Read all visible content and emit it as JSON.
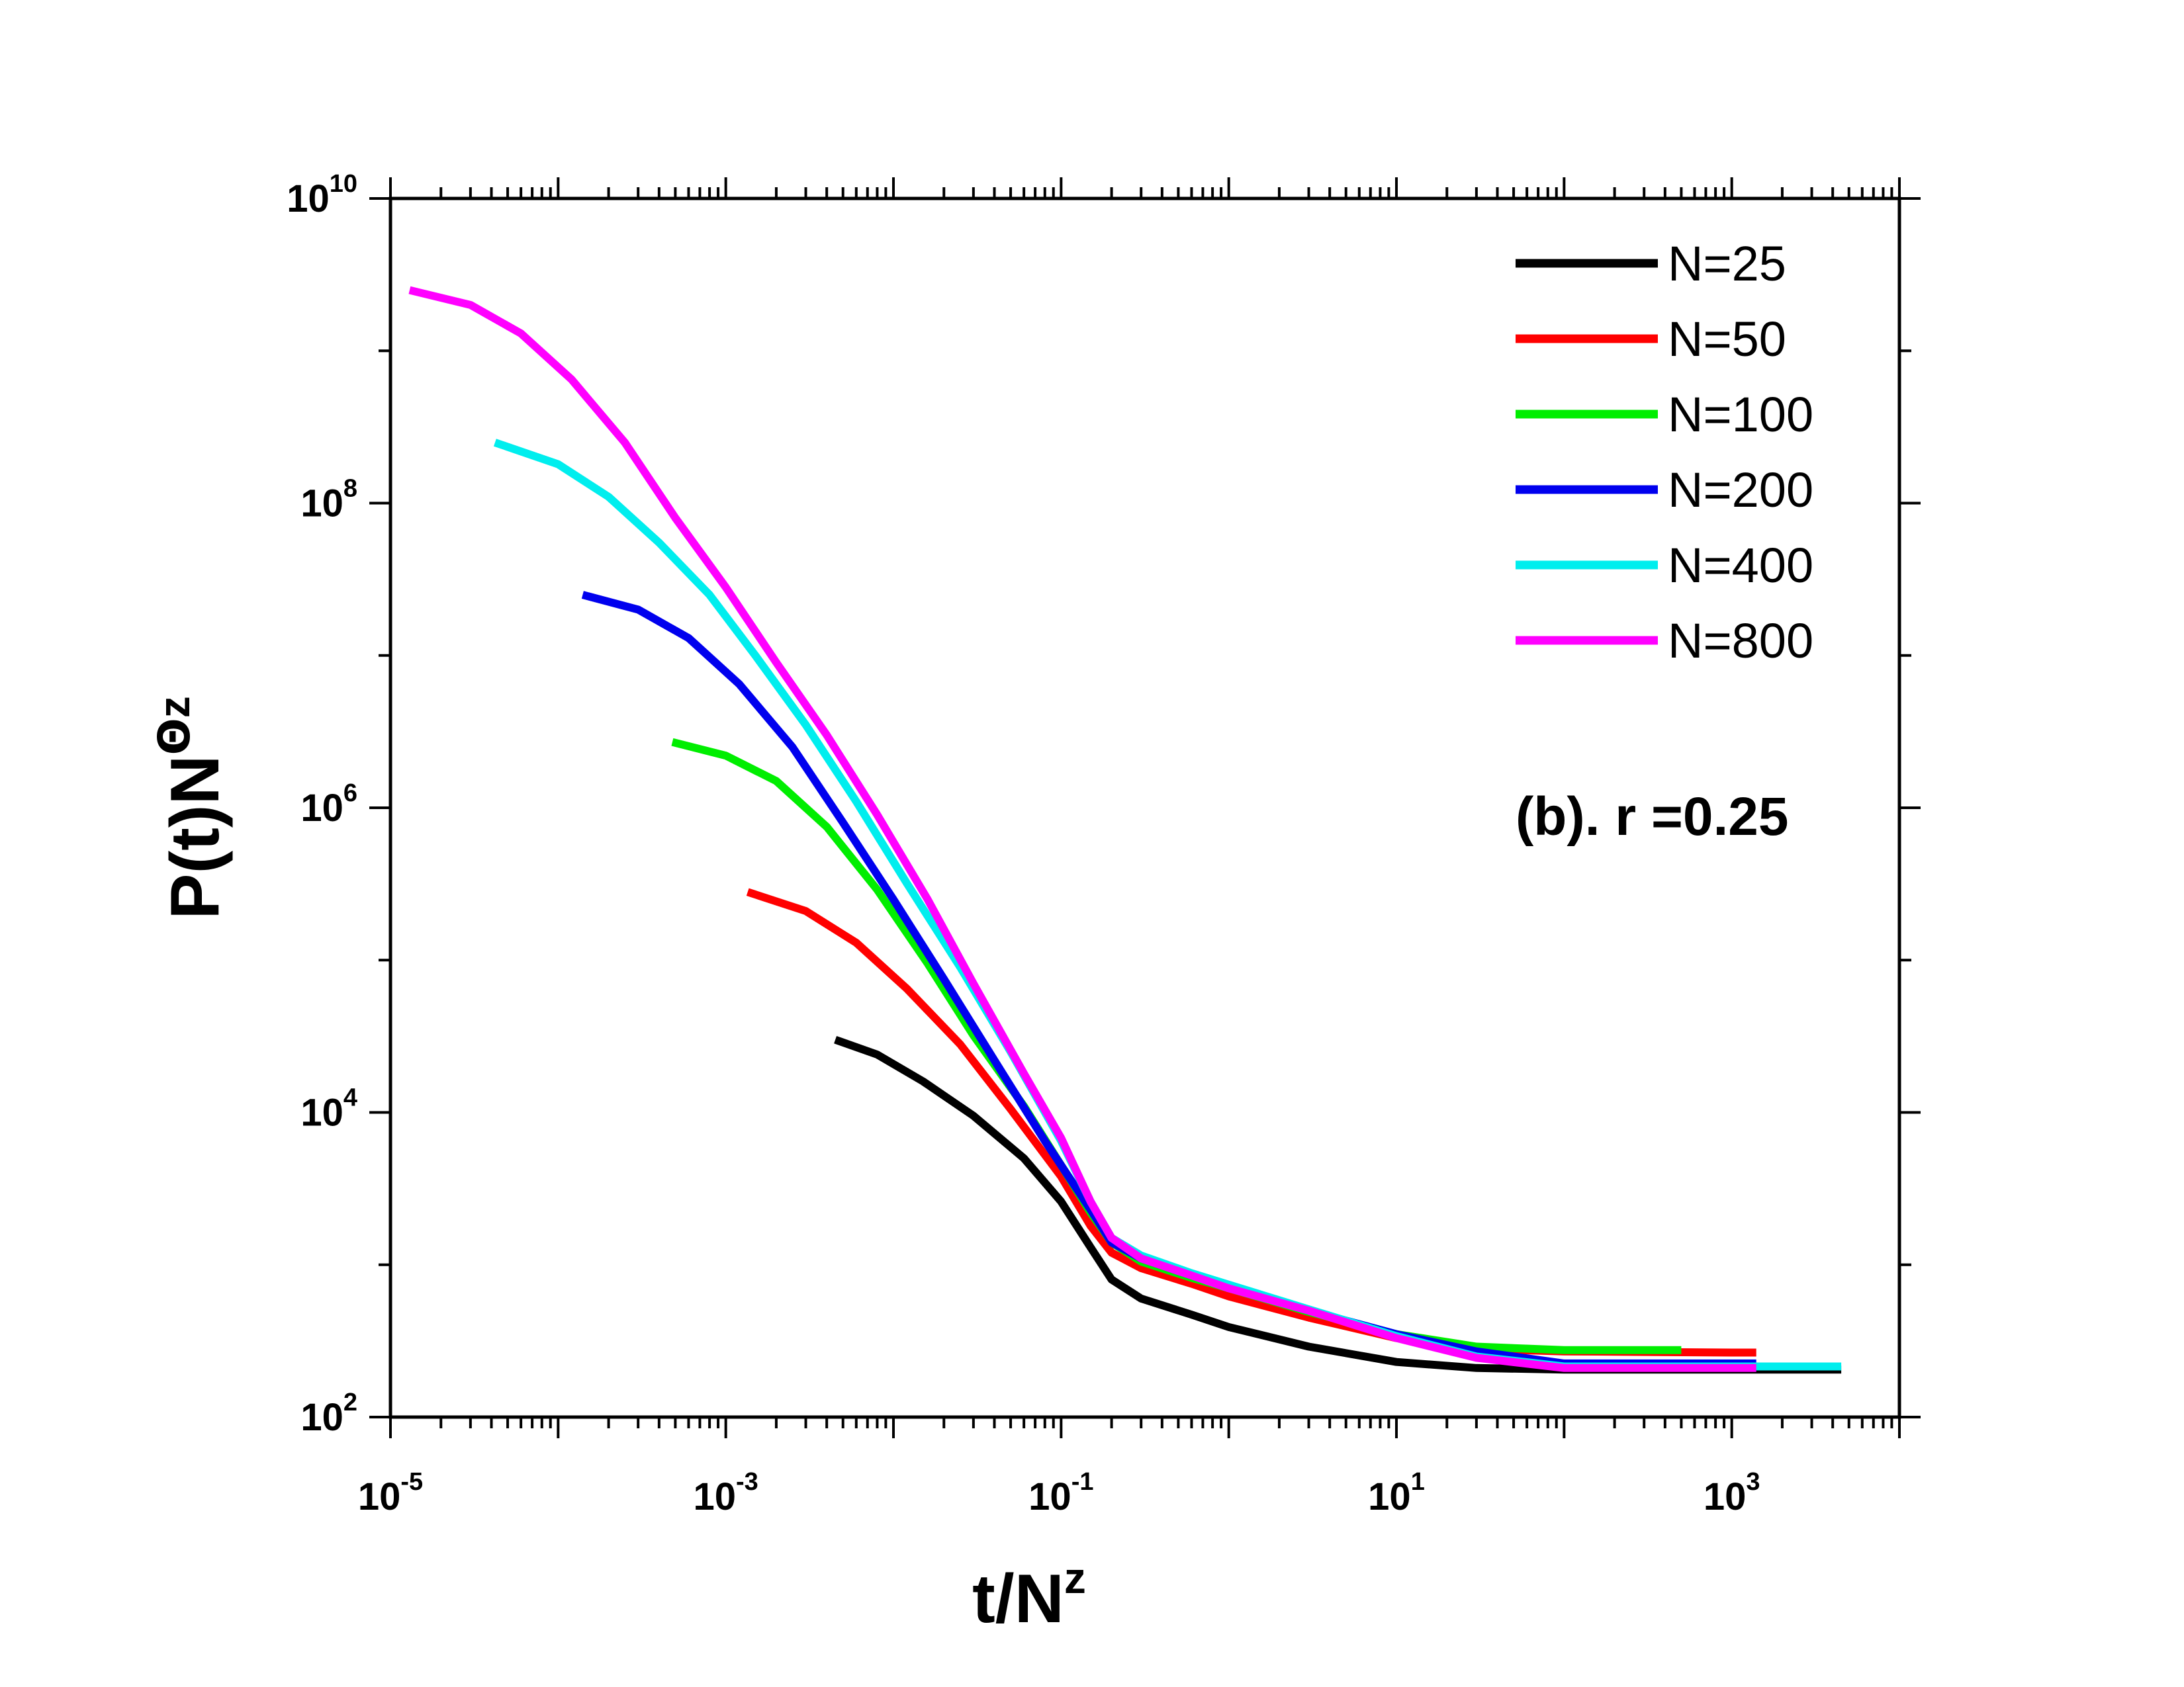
{
  "chart_data": {
    "type": "line",
    "xscale": "log",
    "yscale": "log",
    "xlim": [
      1e-05,
      10000
    ],
    "ylim": [
      100,
      10000000000.0
    ],
    "xlabel": {
      "base": "t/N",
      "sup": "z"
    },
    "ylabel": {
      "base": "P(t)N",
      "sup_theta": "Θ",
      "sup": "z"
    },
    "x_ticks": [
      {
        "base": "10",
        "exp": "-5",
        "value": 1e-05
      },
      {
        "base": "10",
        "exp": "-3",
        "value": 0.001
      },
      {
        "base": "10",
        "exp": "-1",
        "value": 0.1
      },
      {
        "base": "10",
        "exp": "1",
        "value": 10
      },
      {
        "base": "10",
        "exp": "3",
        "value": 1000
      }
    ],
    "y_ticks": [
      {
        "base": "10",
        "exp": "2",
        "value": 100
      },
      {
        "base": "10",
        "exp": "4",
        "value": 10000
      },
      {
        "base": "10",
        "exp": "6",
        "value": 1000000
      },
      {
        "base": "10",
        "exp": "8",
        "value": 100000000
      },
      {
        "base": "10",
        "exp": "10",
        "value": 10000000000
      }
    ],
    "annotation": "(b). r =0.25",
    "legend_position": "top-right",
    "series": [
      {
        "name": "N=25",
        "color": "#000000",
        "points": [
          [
            0.0045,
            30000
          ],
          [
            0.008,
            24000
          ],
          [
            0.015,
            16000
          ],
          [
            0.03,
            9500
          ],
          [
            0.06,
            5000
          ],
          [
            0.1,
            2600
          ],
          [
            0.15,
            1300
          ],
          [
            0.2,
            800
          ],
          [
            0.3,
            600
          ],
          [
            0.6,
            470
          ],
          [
            1,
            390
          ],
          [
            3,
            290
          ],
          [
            10,
            230
          ],
          [
            30,
            210
          ],
          [
            100,
            205
          ],
          [
            1000,
            205
          ],
          [
            4500,
            205
          ]
        ]
      },
      {
        "name": "N=50",
        "color": "#ff0000",
        "points": [
          [
            0.00135,
            280000
          ],
          [
            0.003,
            210000
          ],
          [
            0.006,
            130000
          ],
          [
            0.012,
            65000
          ],
          [
            0.025,
            28000
          ],
          [
            0.05,
            10500
          ],
          [
            0.1,
            3800
          ],
          [
            0.15,
            1800
          ],
          [
            0.2,
            1200
          ],
          [
            0.3,
            950
          ],
          [
            0.6,
            750
          ],
          [
            1,
            620
          ],
          [
            3,
            450
          ],
          [
            10,
            330
          ],
          [
            30,
            280
          ],
          [
            100,
            270
          ],
          [
            1000,
            265
          ],
          [
            1400,
            265
          ]
        ]
      },
      {
        "name": "N=100",
        "color": "#00ee00",
        "points": [
          [
            0.00048,
            2700000
          ],
          [
            0.001,
            2200000
          ],
          [
            0.002,
            1500000
          ],
          [
            0.004,
            750000
          ],
          [
            0.008,
            290000
          ],
          [
            0.016,
            95000
          ],
          [
            0.03,
            32000
          ],
          [
            0.06,
            11000
          ],
          [
            0.1,
            4500
          ],
          [
            0.15,
            2200
          ],
          [
            0.2,
            1400
          ],
          [
            0.3,
            1050
          ],
          [
            0.6,
            820
          ],
          [
            1,
            700
          ],
          [
            3,
            490
          ],
          [
            10,
            350
          ],
          [
            30,
            290
          ],
          [
            100,
            275
          ],
          [
            500,
            275
          ]
        ]
      },
      {
        "name": "N=200",
        "color": "#0000ee",
        "points": [
          [
            0.00014,
            25000000
          ],
          [
            0.0003,
            20000000
          ],
          [
            0.0006,
            13000000
          ],
          [
            0.0012,
            6500000
          ],
          [
            0.0025,
            2500000
          ],
          [
            0.005,
            800000
          ],
          [
            0.01,
            250000
          ],
          [
            0.02,
            75000
          ],
          [
            0.04,
            22000
          ],
          [
            0.08,
            6500
          ],
          [
            0.15,
            2300
          ],
          [
            0.2,
            1400
          ],
          [
            0.3,
            1100
          ],
          [
            0.6,
            850
          ],
          [
            1,
            720
          ],
          [
            3,
            500
          ],
          [
            10,
            350
          ],
          [
            30,
            270
          ],
          [
            100,
            225
          ],
          [
            1400,
            225
          ]
        ]
      },
      {
        "name": "N=400",
        "color": "#00eeee",
        "points": [
          [
            4.2e-05,
            250000000
          ],
          [
            0.0001,
            180000000
          ],
          [
            0.0002,
            110000000
          ],
          [
            0.0004,
            55000000
          ],
          [
            0.0008,
            25000000
          ],
          [
            0.0015,
            10000000
          ],
          [
            0.003,
            3500000
          ],
          [
            0.006,
            1100000
          ],
          [
            0.012,
            320000
          ],
          [
            0.025,
            90000
          ],
          [
            0.05,
            25000
          ],
          [
            0.1,
            6500
          ],
          [
            0.15,
            2600
          ],
          [
            0.2,
            1500
          ],
          [
            0.3,
            1150
          ],
          [
            0.6,
            880
          ],
          [
            1,
            740
          ],
          [
            3,
            510
          ],
          [
            10,
            340
          ],
          [
            30,
            250
          ],
          [
            100,
            215
          ],
          [
            4500,
            215
          ]
        ]
      },
      {
        "name": "N=800",
        "color": "#ff00ff",
        "points": [
          [
            1.3e-05,
            2500000000
          ],
          [
            3e-05,
            2000000000
          ],
          [
            6e-05,
            1300000000
          ],
          [
            0.00012,
            650000000
          ],
          [
            0.00025,
            250000000
          ],
          [
            0.0005,
            80000000
          ],
          [
            0.001,
            28000000
          ],
          [
            0.002,
            9000000
          ],
          [
            0.004,
            3000000
          ],
          [
            0.008,
            900000
          ],
          [
            0.016,
            250000
          ],
          [
            0.03,
            70000
          ],
          [
            0.06,
            18000
          ],
          [
            0.1,
            6800
          ],
          [
            0.15,
            2600
          ],
          [
            0.2,
            1500
          ],
          [
            0.3,
            1100
          ],
          [
            0.6,
            850
          ],
          [
            1,
            700
          ],
          [
            3,
            500
          ],
          [
            10,
            330
          ],
          [
            30,
            245
          ],
          [
            100,
            210
          ],
          [
            1400,
            210
          ]
        ]
      }
    ]
  }
}
